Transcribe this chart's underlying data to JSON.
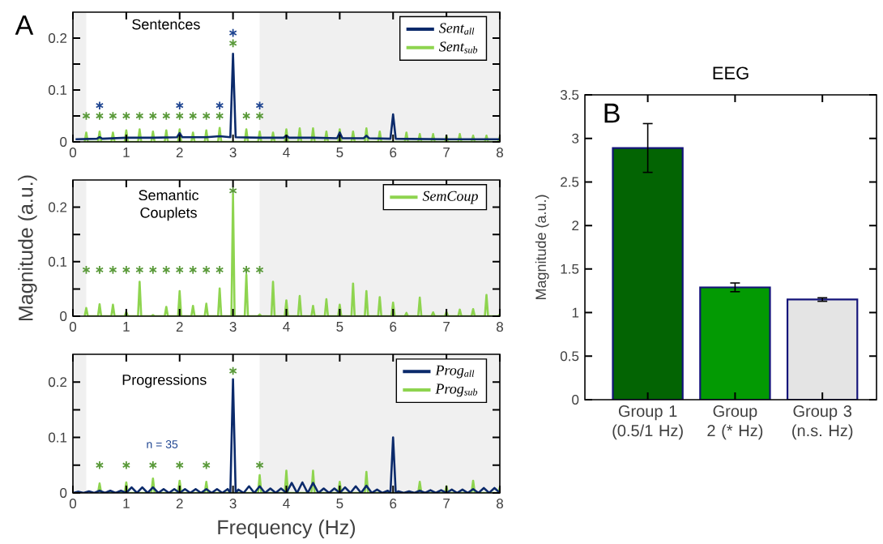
{
  "chart_data": [
    {
      "type": "line",
      "annotations": [
        "A",
        "Sentences"
      ],
      "xlim": [
        0,
        8
      ],
      "ylim": [
        0,
        0.25
      ],
      "xticks": [
        0,
        1,
        2,
        3,
        4,
        5,
        6,
        7,
        8
      ],
      "yticks": [
        0,
        0.1,
        0.2
      ],
      "legend": "top right",
      "bands": [
        {
          "axis": "x",
          "from": 0,
          "to": 0.25,
          "color": "#f0f0f0"
        },
        {
          "axis": "x",
          "from": 3.5,
          "to": 8,
          "color": "#f0f0f0"
        }
      ],
      "series": [
        {
          "name": "Sent$_{all}$",
          "color": "#0b2a6b",
          "x": [
            0.05,
            0.45,
            0.5,
            0.55,
            1,
            1.5,
            1.95,
            2,
            2.05,
            2.5,
            2.75,
            2.95,
            3,
            3.05,
            3.5,
            3.95,
            4,
            4.05,
            4.5,
            4.95,
            5,
            5.05,
            5.45,
            5.5,
            5.55,
            5.95,
            6,
            6.05,
            7,
            8
          ],
          "values": [
            0.005,
            0.006,
            0.009,
            0.006,
            0.008,
            0.008,
            0.009,
            0.017,
            0.009,
            0.009,
            0.011,
            0.009,
            0.17,
            0.009,
            0.008,
            0.008,
            0.012,
            0.008,
            0.008,
            0.007,
            0.018,
            0.007,
            0.007,
            0.012,
            0.007,
            0.006,
            0.053,
            0.006,
            0.005,
            0.005
          ]
        },
        {
          "name": "Sent$_{sub}$",
          "color": "#8ed44f",
          "x": [
            0.22,
            0.25,
            0.28,
            0.47,
            0.5,
            0.53,
            0.72,
            0.75,
            0.78,
            0.97,
            1,
            1.03,
            1.22,
            1.25,
            1.28,
            1.47,
            1.5,
            1.53,
            1.72,
            1.75,
            1.78,
            1.97,
            2,
            2.03,
            2.22,
            2.25,
            2.28,
            2.47,
            2.5,
            2.53,
            2.72,
            2.75,
            2.78,
            2.97,
            3,
            3.03,
            3.22,
            3.25,
            3.28,
            3.47,
            3.5,
            3.53,
            3.72,
            3.75,
            3.78,
            3.97,
            4,
            4.03,
            4.22,
            4.25,
            4.28,
            4.47,
            4.5,
            4.53,
            4.72,
            4.75,
            4.78,
            4.97,
            5,
            5.03,
            5.22,
            5.25,
            5.28,
            5.47,
            5.5,
            5.53,
            5.72,
            5.75,
            5.78,
            5.97,
            6,
            6.03,
            6.22,
            6.25,
            6.28,
            6.47,
            6.5,
            6.53,
            6.72,
            6.75,
            6.78,
            6.97,
            7,
            7.03,
            7.22,
            7.25,
            7.28,
            7.47,
            7.5,
            7.53,
            7.72,
            7.75,
            7.78,
            7.97,
            8
          ],
          "values": [
            0,
            0.018,
            0,
            0,
            0.02,
            0,
            0,
            0.018,
            0,
            0,
            0.022,
            0,
            0,
            0.024,
            0,
            0,
            0.02,
            0,
            0,
            0.022,
            0,
            0,
            0.024,
            0,
            0,
            0.018,
            0,
            0,
            0.022,
            0,
            0,
            0.027,
            0,
            null,
            null,
            null,
            0,
            0.024,
            0,
            0,
            0.02,
            0,
            0,
            0.018,
            0,
            0,
            0.024,
            0,
            0,
            0.026,
            0,
            0,
            0.026,
            0,
            0,
            0.02,
            0,
            0,
            0.024,
            0,
            0,
            0.02,
            0,
            0,
            0.026,
            0,
            0,
            0.02,
            0,
            null,
            null,
            null,
            0,
            0.018,
            0,
            0,
            0.015,
            0,
            0,
            0.015,
            0,
            0,
            0.012,
            0,
            0,
            0.015,
            0,
            0,
            0.012,
            0,
            0,
            0.012,
            0,
            0,
            0.01
          ]
        },
        {
          "type": "scatter",
          "marker": "cross",
          "color": "#1f4591",
          "x": [
            0.5,
            2,
            2.75,
            3,
            3.5
          ],
          "values": [
            0.07,
            0.07,
            0.07,
            0.21,
            0.07
          ]
        },
        {
          "type": "scatter",
          "marker": "cross",
          "color": "#5a9a3a",
          "x": [
            0.25,
            0.5,
            0.75,
            1,
            1.25,
            1.5,
            1.75,
            2,
            2.25,
            2.5,
            2.75,
            3,
            3.25,
            3.5
          ],
          "values": [
            0.05,
            0.05,
            0.05,
            0.05,
            0.05,
            0.05,
            0.05,
            0.05,
            0.05,
            0.05,
            0.05,
            0.19,
            0.05,
            0.05
          ]
        }
      ]
    },
    {
      "type": "line",
      "annotations": [
        "Semantic Couplets"
      ],
      "ylabel": "Magnitude (a.u.)",
      "xlim": [
        0,
        8
      ],
      "ylim": [
        0,
        0.25
      ],
      "xticks": [
        0,
        1,
        2,
        3,
        4,
        5,
        6,
        7,
        8
      ],
      "yticks": [
        0,
        0.1,
        0.2
      ],
      "legend": "top right",
      "bands": [
        {
          "axis": "x",
          "from": 0,
          "to": 0.25,
          "color": "#f0f0f0"
        },
        {
          "axis": "x",
          "from": 3.5,
          "to": 8,
          "color": "#f0f0f0"
        }
      ],
      "series": [
        {
          "name": "SemCoup",
          "color": "#8ed44f",
          "x": [
            0.22,
            0.25,
            0.28,
            0.47,
            0.5,
            0.53,
            0.72,
            0.75,
            0.78,
            0.97,
            1,
            1.03,
            1.22,
            1.25,
            1.28,
            1.47,
            1.5,
            1.53,
            1.72,
            1.75,
            1.78,
            1.97,
            2,
            2.03,
            2.22,
            2.25,
            2.28,
            2.47,
            2.5,
            2.53,
            2.72,
            2.75,
            2.78,
            2.97,
            3,
            3.03,
            3.22,
            3.25,
            3.28,
            3.47,
            3.5,
            3.53,
            3.72,
            3.75,
            3.78,
            3.97,
            4,
            4.03,
            4.22,
            4.25,
            4.28,
            4.47,
            4.5,
            4.53,
            4.72,
            4.75,
            4.78,
            4.97,
            5,
            5.03,
            5.22,
            5.25,
            5.28,
            5.47,
            5.5,
            5.53,
            5.72,
            5.75,
            5.78,
            5.97,
            6,
            6.03,
            6.22,
            6.25,
            6.28,
            6.47,
            6.5,
            6.53,
            6.72,
            6.75,
            6.78,
            6.97,
            7,
            7.03,
            7.22,
            7.25,
            7.28,
            7.47,
            7.5,
            7.53,
            7.72,
            7.75,
            7.78,
            7.97,
            8
          ],
          "values": [
            0,
            0.015,
            0,
            0,
            0.022,
            0,
            0,
            0.021,
            0,
            0,
            0.008,
            0,
            0,
            0.063,
            0,
            0,
            0.002,
            0,
            0,
            0.017,
            0,
            0,
            0.046,
            0,
            0,
            0.019,
            0,
            0,
            0.023,
            0,
            0,
            0.051,
            0,
            0,
            0.224,
            0,
            0,
            0.076,
            0,
            0,
            0.003,
            0,
            0,
            0.063,
            0,
            0,
            0.029,
            0,
            0,
            0.037,
            0,
            0,
            0.019,
            0,
            0,
            0.031,
            0,
            0,
            0.021,
            0,
            0,
            0.06,
            0,
            0,
            0.046,
            0,
            0,
            0.035,
            0,
            0,
            0.025,
            0,
            0,
            0.006,
            0,
            0,
            0.034,
            0,
            0,
            0.007,
            0,
            0,
            0.008,
            0,
            0,
            0.012,
            0,
            0,
            0.013,
            0,
            0,
            0.039,
            0,
            0,
            0.003
          ]
        },
        {
          "type": "scatter",
          "marker": "cross",
          "color": "#5a9a3a",
          "x": [
            0.25,
            0.5,
            0.75,
            1,
            1.25,
            1.5,
            1.75,
            2,
            2.25,
            2.5,
            2.75,
            3,
            3.25,
            3.5
          ],
          "values": [
            0.085,
            0.085,
            0.085,
            0.085,
            0.085,
            0.085,
            0.085,
            0.085,
            0.085,
            0.085,
            0.085,
            0.23,
            0.085,
            0.085
          ]
        }
      ]
    },
    {
      "type": "line",
      "annotations": [
        "Progressions",
        "n = 35"
      ],
      "xlabel": "Frequency (Hz)",
      "xlim": [
        0,
        8
      ],
      "ylim": [
        0,
        0.25
      ],
      "xticks": [
        0,
        1,
        2,
        3,
        4,
        5,
        6,
        7,
        8
      ],
      "yticks": [
        0,
        0.1,
        0.2
      ],
      "legend": "top right",
      "bands": [
        {
          "axis": "x",
          "from": 0,
          "to": 0.25,
          "color": "#f0f0f0"
        },
        {
          "axis": "x",
          "from": 3.5,
          "to": 8,
          "color": "#f0f0f0"
        }
      ],
      "series": [
        {
          "name": "Prog$_{all}$",
          "color": "#0b2a6b",
          "x": [
            0,
            0.1,
            0.2,
            0.3,
            0.4,
            0.5,
            0.6,
            0.7,
            0.8,
            0.9,
            1,
            1.1,
            1.2,
            1.3,
            1.4,
            1.5,
            1.6,
            1.7,
            1.8,
            1.9,
            2,
            2.1,
            2.2,
            2.3,
            2.4,
            2.5,
            2.6,
            2.7,
            2.8,
            2.9,
            2.95,
            3,
            3.05,
            3.1,
            3.2,
            3.3,
            3.4,
            3.5,
            3.6,
            3.7,
            3.8,
            3.9,
            4,
            4.1,
            4.2,
            4.3,
            4.4,
            4.5,
            4.6,
            4.7,
            4.8,
            4.9,
            5,
            5.1,
            5.2,
            5.3,
            5.4,
            5.5,
            5.6,
            5.7,
            5.8,
            5.9,
            5.95,
            6,
            6.05,
            6.1,
            6.2,
            6.3,
            6.4,
            6.5,
            6.6,
            6.7,
            6.8,
            6.9,
            7,
            7.1,
            7.2,
            7.3,
            7.4,
            7.5,
            7.6,
            7.7,
            7.8,
            7.9,
            8
          ],
          "values": [
            0,
            0.002,
            0,
            0.003,
            0,
            0.004,
            0,
            0.004,
            0,
            0.004,
            0,
            0.01,
            0,
            0.01,
            0,
            0.01,
            0,
            0.007,
            0,
            0.007,
            0,
            0.007,
            0,
            0.007,
            0,
            0.007,
            0,
            0.007,
            0,
            0.007,
            0,
            0.205,
            0,
            0.006,
            0,
            0.012,
            0,
            0.012,
            0,
            0.008,
            0,
            0.008,
            0,
            0.018,
            0,
            0.019,
            0,
            0.018,
            0,
            0.008,
            0,
            0.008,
            0,
            0.01,
            0,
            0.012,
            0,
            0.013,
            0,
            0.006,
            0,
            0.004,
            0,
            0.1,
            0,
            0.003,
            0,
            0.003,
            0,
            0.004,
            0,
            0.005,
            0,
            0.005,
            0,
            0.006,
            0,
            0.006,
            0,
            0.007,
            0,
            0.009,
            0,
            0.009,
            0
          ]
        },
        {
          "name": "Prog$_{sub}$",
          "color": "#8ed44f",
          "x": [
            0.47,
            0.5,
            0.53,
            0.97,
            1,
            1.03,
            1.47,
            1.5,
            1.53,
            1.97,
            2,
            2.03,
            2.47,
            2.5,
            2.53,
            2.97,
            3,
            3.03,
            3.47,
            3.5,
            3.53,
            3.97,
            4,
            4.03,
            4.47,
            4.5,
            4.53,
            4.97,
            5,
            5.03,
            5.47,
            5.5,
            5.53,
            5.97,
            6,
            6.03,
            6.47,
            6.5,
            6.53,
            6.97,
            7,
            7.03,
            7.47,
            7.5,
            7.53,
            7.97,
            8
          ],
          "values": [
            0,
            0.017,
            0,
            0,
            0.019,
            0,
            0,
            0.026,
            0,
            0,
            0.022,
            0,
            0,
            0.02,
            0,
            0,
            null,
            0,
            0,
            0.032,
            0,
            0,
            0.04,
            0,
            0,
            0.04,
            0,
            0,
            0.02,
            0,
            0,
            0.038,
            0,
            0,
            null,
            0,
            0,
            0.02,
            0,
            0,
            0.012,
            0,
            0,
            0.022,
            0,
            0,
            0.01
          ]
        },
        {
          "type": "scatter",
          "marker": "cross",
          "color": "#5a9a3a",
          "x": [
            0.5,
            1,
            1.5,
            2,
            2.5,
            3,
            3.5
          ],
          "values": [
            0.05,
            0.05,
            0.05,
            0.05,
            0.05,
            0.22,
            0.05
          ]
        }
      ]
    },
    {
      "type": "bar",
      "title": "EEG",
      "ylabel": "Magnitude (a.u.)",
      "annotations": [
        "B"
      ],
      "categories": [
        "Group 1 (0.5/1 Hz)",
        "Group 2 (* Hz)",
        "Group 3 (n.s. Hz)"
      ],
      "values": [
        2.89,
        1.29,
        1.15
      ],
      "errors": [
        0.28,
        0.05,
        0.02
      ],
      "colors": [
        "#036403",
        "#039a03",
        "#e4e4e4"
      ],
      "ylim": [
        0,
        3.5
      ],
      "yticks": [
        0,
        0.5,
        1,
        1.5,
        2,
        2.5,
        3,
        3.5
      ]
    }
  ]
}
